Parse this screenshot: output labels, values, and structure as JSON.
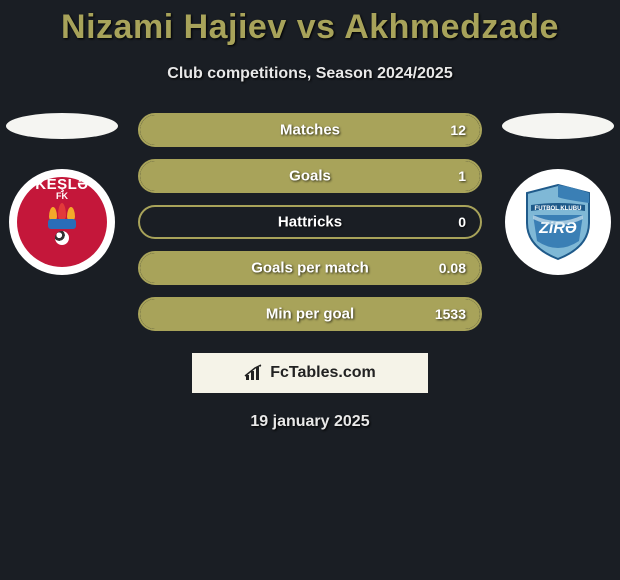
{
  "title": "Nizami Hajiev vs Akhmedzade",
  "subtitle": "Club competitions, Season 2024/2025",
  "date": "19 january 2025",
  "brand": "FcTables.com",
  "colors": {
    "background": "#1a1e24",
    "accent": "#a8a35a",
    "text": "#ffffff",
    "brand_bg": "#f5f3e8",
    "brand_text": "#222222",
    "flag_bg": "#f5f5f2",
    "kesla_red": "#c4173a",
    "zira_blue_light": "#7fb8d6",
    "zira_blue_mid": "#3a7fb5",
    "zira_blue_dark": "#1f5a8a"
  },
  "left_club": {
    "name": "Keşlə FK",
    "short": "KEŞLƏ",
    "sub": "FK"
  },
  "right_club": {
    "name": "Zirə FK",
    "short": "ZiRƏ"
  },
  "stats": [
    {
      "label": "Matches",
      "right_value": "12",
      "fill_pct": 100
    },
    {
      "label": "Goals",
      "right_value": "1",
      "fill_pct": 100
    },
    {
      "label": "Hattricks",
      "right_value": "0",
      "fill_pct": 0
    },
    {
      "label": "Goals per match",
      "right_value": "0.08",
      "fill_pct": 100
    },
    {
      "label": "Min per goal",
      "right_value": "1533",
      "fill_pct": 100
    }
  ]
}
